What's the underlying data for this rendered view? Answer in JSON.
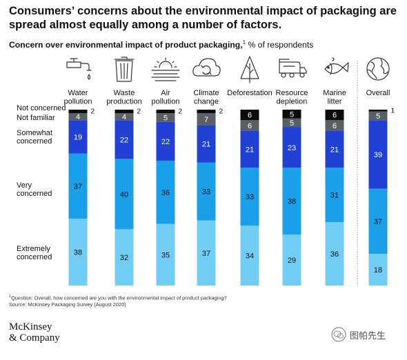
{
  "title": "Consumers’ concerns about the environmental impact of packaging are spread almost equally among a number of factors.",
  "subtitle_bold": "Concern over environmental impact of product packaging,",
  "subtitle_sup": "1",
  "subtitle_unit": "% of respondents",
  "footnote_sup": "1",
  "footnote_question": "Question: Overall, how concerned are you with the environmental impact of product packaging?",
  "footnote_source": "Source: McKinsey Packaging Survey (August 2020)",
  "brand_line1": "McKinsey",
  "brand_line2": "& Company",
  "watermark_text": "图帕先生",
  "colors": {
    "extremely": "#72cdf4",
    "very": "#1aa0e8",
    "somewhat": "#2140d4",
    "not_familiar": "#5a5f66",
    "not_concerned": "#0c0c0c",
    "icon": "#333333"
  },
  "chart_data": {
    "type": "bar",
    "stacked": true,
    "normalized": true,
    "categories": [
      {
        "label": [
          "Water",
          "pollution"
        ],
        "icon": "faucet-icon"
      },
      {
        "label": [
          "Waste",
          "production"
        ],
        "icon": "trash-can-icon"
      },
      {
        "label": [
          "Air",
          "pollution"
        ],
        "icon": "smog-sun-icon"
      },
      {
        "label": [
          "Climate",
          "change"
        ],
        "icon": "cloud-cycle-icon"
      },
      {
        "label": [
          "Deforestation"
        ],
        "icon": "tree-icon"
      },
      {
        "label": [
          "Resource",
          "depletion"
        ],
        "icon": "tanker-truck-icon"
      },
      {
        "label": [
          "Marine",
          "litter"
        ],
        "icon": "fish-icon"
      },
      {
        "label": [
          "Overall"
        ],
        "icon": "globe-icon"
      }
    ],
    "series": [
      {
        "name": [
          "Extremely",
          "concerned"
        ],
        "key": "extremely",
        "values": [
          38,
          32,
          35,
          37,
          34,
          29,
          36,
          18
        ]
      },
      {
        "name": [
          "Very",
          "concerned"
        ],
        "key": "very",
        "values": [
          37,
          40,
          36,
          33,
          33,
          38,
          31,
          37
        ]
      },
      {
        "name": [
          "Somewhat",
          "concerned"
        ],
        "key": "somewhat",
        "values": [
          19,
          22,
          22,
          21,
          21,
          23,
          21,
          39
        ]
      },
      {
        "name": [
          "Not familiar"
        ],
        "key": "not_familiar",
        "values": [
          4,
          4,
          5,
          7,
          6,
          5,
          6,
          5
        ]
      },
      {
        "name": [
          "Not concerned"
        ],
        "key": "not_concerned",
        "values": [
          2,
          2,
          2,
          2,
          6,
          5,
          6,
          1
        ]
      }
    ],
    "ylim": [
      0,
      100
    ]
  }
}
